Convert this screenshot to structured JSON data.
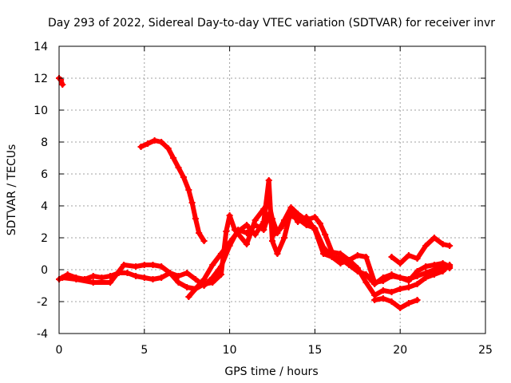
{
  "chart_data": {
    "type": "scatter",
    "title": "Day 293 of 2022, Sidereal Day-to-day VTEC variation (SDTVAR) for receiver invr",
    "xlabel": "GPS time / hours",
    "ylabel": "SDTVAR / TECUs",
    "xlim": [
      0,
      25
    ],
    "ylim": [
      -4,
      14
    ],
    "xticks": [
      0,
      5,
      10,
      15,
      20,
      25
    ],
    "yticks": [
      -4,
      -2,
      0,
      2,
      4,
      6,
      8,
      10,
      12,
      14
    ],
    "grid": true,
    "marker": "+",
    "color": "#ff0000",
    "series": [
      {
        "name": "s1",
        "points": [
          [
            0.0,
            12.0
          ],
          [
            0.1,
            11.9
          ],
          [
            0.2,
            11.6
          ]
        ]
      },
      {
        "name": "s2",
        "points": [
          [
            4.8,
            7.7
          ],
          [
            5.2,
            7.9
          ],
          [
            5.6,
            8.1
          ],
          [
            6.0,
            8.0
          ],
          [
            6.4,
            7.6
          ],
          [
            6.7,
            7.0
          ],
          [
            7.0,
            6.4
          ],
          [
            7.3,
            5.8
          ],
          [
            7.6,
            5.0
          ],
          [
            7.8,
            4.2
          ],
          [
            8.0,
            3.2
          ],
          [
            8.2,
            2.3
          ],
          [
            8.5,
            1.8
          ]
        ]
      },
      {
        "name": "s3",
        "points": [
          [
            0.0,
            -0.6
          ],
          [
            0.5,
            -0.3
          ],
          [
            1.0,
            -0.5
          ],
          [
            1.5,
            -0.6
          ],
          [
            2.0,
            -0.4
          ],
          [
            2.5,
            -0.5
          ],
          [
            3.0,
            -0.4
          ],
          [
            3.5,
            -0.2
          ],
          [
            4.0,
            -0.2
          ],
          [
            4.5,
            -0.4
          ],
          [
            5.0,
            -0.5
          ],
          [
            5.5,
            -0.6
          ],
          [
            6.0,
            -0.5
          ],
          [
            6.5,
            -0.2
          ],
          [
            7.0,
            -0.4
          ],
          [
            7.5,
            -0.2
          ],
          [
            8.0,
            -0.6
          ],
          [
            8.5,
            -1.0
          ],
          [
            9.0,
            -0.5
          ],
          [
            9.5,
            0.2
          ],
          [
            10.0,
            1.5
          ],
          [
            10.5,
            2.5
          ],
          [
            11.0,
            2.3
          ],
          [
            11.5,
            2.8
          ],
          [
            12.0,
            2.5
          ],
          [
            12.3,
            3.5
          ],
          [
            12.6,
            2.2
          ],
          [
            13.0,
            2.6
          ],
          [
            13.5,
            3.4
          ],
          [
            14.0,
            3.2
          ],
          [
            14.5,
            2.8
          ],
          [
            15.0,
            2.6
          ],
          [
            15.5,
            1.4
          ],
          [
            16.0,
            0.8
          ],
          [
            16.5,
            0.7
          ],
          [
            17.0,
            0.3
          ],
          [
            17.5,
            -0.1
          ],
          [
            18.0,
            -0.3
          ],
          [
            18.5,
            -0.9
          ],
          [
            19.0,
            -0.5
          ],
          [
            19.5,
            -0.3
          ],
          [
            20.0,
            -0.5
          ],
          [
            20.5,
            -0.6
          ],
          [
            21.0,
            -0.4
          ],
          [
            21.5,
            -0.2
          ],
          [
            22.0,
            0.0
          ],
          [
            22.5,
            0.2
          ],
          [
            22.9,
            0.1
          ]
        ]
      },
      {
        "name": "s4",
        "points": [
          [
            0.2,
            -0.5
          ],
          [
            1.0,
            -0.6
          ],
          [
            2.0,
            -0.8
          ],
          [
            3.0,
            -0.8
          ],
          [
            3.8,
            0.3
          ],
          [
            4.5,
            0.2
          ],
          [
            5.0,
            0.3
          ],
          [
            5.5,
            0.3
          ],
          [
            6.0,
            0.2
          ],
          [
            6.5,
            -0.2
          ],
          [
            7.0,
            -0.8
          ],
          [
            7.5,
            -1.1
          ],
          [
            8.0,
            -1.2
          ],
          [
            8.5,
            -0.9
          ],
          [
            9.0,
            -0.8
          ],
          [
            9.5,
            -0.3
          ],
          [
            9.8,
            2.4
          ],
          [
            10.0,
            3.4
          ],
          [
            10.3,
            2.5
          ],
          [
            11.0,
            1.6
          ],
          [
            11.5,
            3.1
          ],
          [
            12.0,
            3.8
          ],
          [
            12.3,
            4.2
          ],
          [
            12.5,
            3.2
          ],
          [
            12.8,
            2.3
          ],
          [
            13.2,
            3.1
          ],
          [
            13.6,
            3.9
          ],
          [
            14.0,
            3.5
          ],
          [
            14.5,
            3.1
          ],
          [
            15.0,
            3.3
          ],
          [
            15.3,
            2.9
          ],
          [
            15.6,
            2.2
          ],
          [
            16.0,
            1.1
          ],
          [
            16.5,
            1.0
          ],
          [
            17.0,
            0.6
          ],
          [
            17.5,
            0.9
          ],
          [
            18.0,
            0.8
          ],
          [
            18.5,
            -0.8
          ],
          [
            19.0,
            -0.7
          ],
          [
            19.5,
            -0.4
          ],
          [
            20.0,
            -0.5
          ],
          [
            20.5,
            -0.7
          ],
          [
            21.0,
            -0.1
          ],
          [
            21.5,
            0.2
          ],
          [
            22.0,
            0.3
          ],
          [
            22.5,
            0.4
          ],
          [
            22.9,
            0.2
          ]
        ]
      },
      {
        "name": "s5",
        "points": [
          [
            7.6,
            -1.7
          ],
          [
            8.0,
            -1.2
          ],
          [
            8.5,
            -0.6
          ],
          [
            9.0,
            0.3
          ],
          [
            9.5,
            1.0
          ],
          [
            10.0,
            1.7
          ],
          [
            10.5,
            2.4
          ],
          [
            11.0,
            2.8
          ],
          [
            11.5,
            2.2
          ],
          [
            12.0,
            3.0
          ],
          [
            12.3,
            5.6
          ],
          [
            12.5,
            1.8
          ],
          [
            12.8,
            1.0
          ],
          [
            13.2,
            2.0
          ],
          [
            13.6,
            3.7
          ],
          [
            14.0,
            3.0
          ],
          [
            14.5,
            3.3
          ],
          [
            15.0,
            2.5
          ],
          [
            15.5,
            1.0
          ],
          [
            16.0,
            0.8
          ],
          [
            16.5,
            0.4
          ],
          [
            17.0,
            0.6
          ],
          [
            17.5,
            0.1
          ],
          [
            18.0,
            -0.8
          ],
          [
            18.5,
            -1.6
          ],
          [
            19.0,
            -1.3
          ],
          [
            19.5,
            -1.4
          ],
          [
            20.0,
            -1.2
          ],
          [
            20.5,
            -1.1
          ],
          [
            21.0,
            -0.9
          ],
          [
            21.5,
            -0.5
          ],
          [
            22.0,
            -0.3
          ],
          [
            22.5,
            -0.1
          ],
          [
            22.9,
            0.3
          ]
        ]
      },
      {
        "name": "s6",
        "points": [
          [
            18.5,
            -1.9
          ],
          [
            19.0,
            -1.8
          ],
          [
            19.5,
            -2.0
          ],
          [
            20.0,
            -2.4
          ],
          [
            20.5,
            -2.1
          ],
          [
            21.0,
            -1.9
          ]
        ]
      },
      {
        "name": "s7",
        "points": [
          [
            19.5,
            0.8
          ],
          [
            20.0,
            0.4
          ],
          [
            20.5,
            0.9
          ],
          [
            21.0,
            0.7
          ],
          [
            21.5,
            1.5
          ],
          [
            22.0,
            2.0
          ],
          [
            22.5,
            1.6
          ],
          [
            22.9,
            1.5
          ]
        ]
      }
    ]
  }
}
